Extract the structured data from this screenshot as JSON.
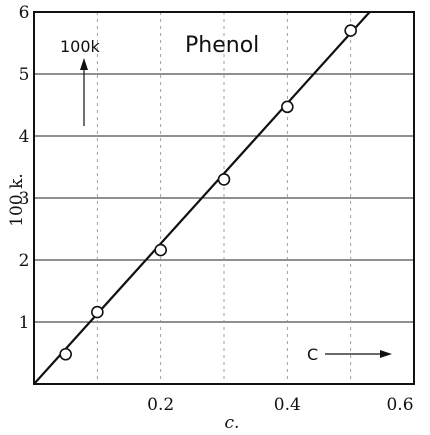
{
  "chart_data": {
    "type": "scatter",
    "title": "Phenol",
    "xlabel": "c.",
    "ylabel": "100 k.",
    "xlim": [
      0,
      0.6
    ],
    "ylim": [
      0,
      6
    ],
    "x_ticks": [
      0.2,
      0.4,
      0.6
    ],
    "x_tick_labels": [
      "0.2",
      "0.4",
      "0.6"
    ],
    "y_ticks": [
      1,
      2,
      3,
      4,
      5,
      6
    ],
    "y_tick_labels": [
      "1",
      "2",
      "3",
      "4",
      "5",
      "6"
    ],
    "grid": true,
    "annotations": {
      "y_arrow_label": "100k",
      "x_arrow_label": "C"
    },
    "points": [
      {
        "x": 0.05,
        "y": 0.48
      },
      {
        "x": 0.1,
        "y": 1.16
      },
      {
        "x": 0.2,
        "y": 2.16
      },
      {
        "x": 0.3,
        "y": 3.3
      },
      {
        "x": 0.4,
        "y": 4.47
      },
      {
        "x": 0.5,
        "y": 5.7
      }
    ],
    "fit_line": [
      {
        "x": 0.0,
        "y": 0.0
      },
      {
        "x": 0.53,
        "y": 6.0
      }
    ]
  }
}
